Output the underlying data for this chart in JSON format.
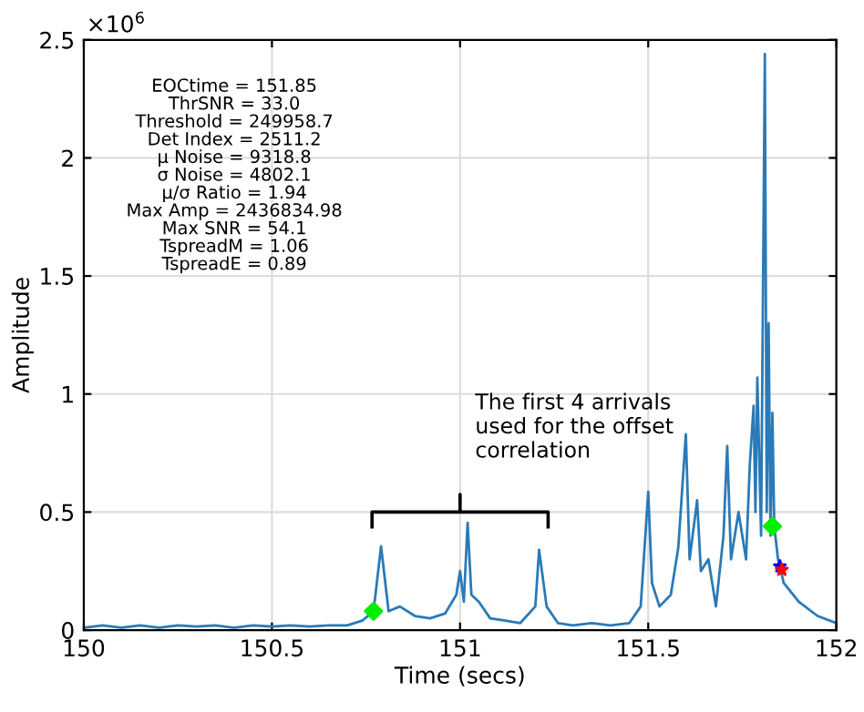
{
  "chart_data": {
    "type": "line",
    "xlabel": "Time (secs)",
    "ylabel": "Amplitude",
    "xlim": [
      150,
      152
    ],
    "xticks": [
      150,
      150.5,
      151,
      151.5,
      152
    ],
    "ylim": [
      0,
      2.5
    ],
    "yticks": [
      0,
      0.5,
      1,
      1.5,
      2,
      2.5
    ],
    "grid": true,
    "annotations": [
      "×10$^{6}$",
      "EOCtime = 151.85",
      "ThrSNR = 33.0",
      "Threshold = 249958.7",
      "Det Index = 2511.2",
      "μ Noise = 9318.8",
      "σ Noise = 4802.1",
      "μ/σ Ratio = 1.94",
      "Max Amp = 2436834.98",
      "Max SNR = 54.1",
      "TspreadM = 1.06",
      "TspreadE = 0.89",
      "The first 4 arrivals\nused for the offset\ncorrelation"
    ],
    "series": [
      {
        "color": "#2a7ab8",
        "x": [
          150.0,
          150.05,
          150.1,
          150.15,
          150.2,
          150.25,
          150.3,
          150.35,
          150.4,
          150.45,
          150.5,
          150.55,
          150.6,
          150.65,
          150.7,
          150.74,
          150.77,
          150.79,
          150.81,
          150.84,
          150.88,
          150.92,
          150.96,
          150.99,
          151.0,
          151.01,
          151.02,
          151.03,
          151.05,
          151.08,
          151.12,
          151.16,
          151.2,
          151.21,
          151.23,
          151.26,
          151.3,
          151.35,
          151.4,
          151.45,
          151.48,
          151.5,
          151.51,
          151.53,
          151.56,
          151.58,
          151.6,
          151.61,
          151.63,
          151.64,
          151.66,
          151.68,
          151.7,
          151.71,
          151.72,
          151.74,
          151.76,
          151.77,
          151.78,
          151.785,
          151.79,
          151.8,
          151.81,
          151.815,
          151.82,
          151.825,
          151.83,
          151.835,
          151.845,
          151.85,
          151.86,
          151.9,
          151.95,
          152.0
        ],
        "values": [
          0.01,
          0.02,
          0.01,
          0.02,
          0.01,
          0.02,
          0.015,
          0.02,
          0.01,
          0.02,
          0.015,
          0.02,
          0.015,
          0.02,
          0.02,
          0.04,
          0.08,
          0.355,
          0.08,
          0.1,
          0.06,
          0.05,
          0.07,
          0.15,
          0.25,
          0.12,
          0.455,
          0.15,
          0.12,
          0.05,
          0.04,
          0.03,
          0.1,
          0.34,
          0.1,
          0.03,
          0.02,
          0.03,
          0.02,
          0.03,
          0.1,
          0.586,
          0.2,
          0.1,
          0.15,
          0.35,
          0.83,
          0.3,
          0.55,
          0.25,
          0.3,
          0.1,
          0.4,
          0.78,
          0.3,
          0.5,
          0.3,
          0.7,
          0.95,
          0.5,
          1.07,
          0.4,
          2.44,
          0.5,
          1.3,
          0.4,
          0.92,
          0.44,
          0.3,
          0.27,
          0.2,
          0.12,
          0.06,
          0.03
        ]
      },
      {
        "type": "scatter",
        "color": "#00ee00",
        "marker": "diamond",
        "x": [
          150.77,
          151.83
        ],
        "values": [
          0.08,
          0.44
        ]
      },
      {
        "type": "scatter",
        "color": "#0000ff",
        "marker": "star",
        "x": [
          151.85
        ],
        "values": [
          0.27
        ]
      },
      {
        "type": "scatter",
        "color": "#ff0000",
        "marker": "star",
        "x": [
          151.855
        ],
        "values": [
          0.255
        ]
      }
    ]
  }
}
